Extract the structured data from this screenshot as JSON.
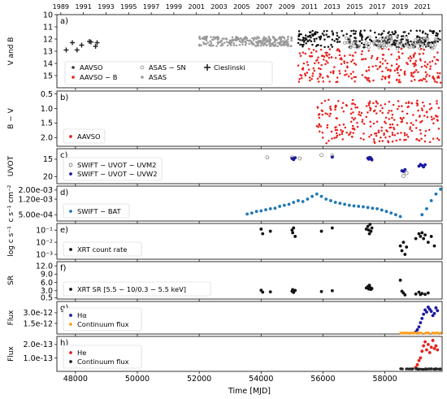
{
  "chart_data": {
    "type": "scatter",
    "x_axis": {
      "label": "Time [MJD]",
      "range": [
        47400,
        59850
      ],
      "ticks": [
        48000,
        50000,
        52000,
        54000,
        56000,
        58000
      ],
      "tick_labels": [
        "48000",
        "50000",
        "52000",
        "54000",
        "56000",
        "58000"
      ]
    },
    "top_axis": {
      "ticks": [
        1989,
        1991,
        1993,
        1995,
        1997,
        1999,
        2001,
        2003,
        2005,
        2007,
        2009,
        2011,
        2013,
        2015,
        2017,
        2019,
        2021
      ],
      "tick_labels": [
        "1989",
        "1991",
        "1993",
        "1995",
        "1997",
        "1999",
        "2001",
        "2003",
        "2005",
        "2007",
        "2009",
        "2011",
        "2013",
        "2015",
        "2017",
        "2019",
        "2021"
      ]
    },
    "panels": [
      {
        "letter": "a)",
        "ylabel": "V and B",
        "ylim": [
          10,
          16
        ],
        "inverted": true,
        "yticks": [
          10,
          11,
          12,
          13,
          14,
          15
        ],
        "ytick_labels": [
          "10",
          "11",
          "12",
          "13",
          "14",
          "15"
        ],
        "legend": [
          "AAVSO",
          "AAVSO − B",
          "ASAS − SN",
          "ASAS",
          "Cieslinski"
        ],
        "series": [
          {
            "name": "Cieslinski",
            "color": "#222222",
            "marker": "plus",
            "x": [
              47700,
              47900,
              48050,
              48200,
              48450,
              48500,
              48650,
              48700
            ],
            "y": [
              12.9,
              12.3,
              12.9,
              12.5,
              12.2,
              12.25,
              12.6,
              12.3
            ]
          },
          {
            "name": "ASAS",
            "color": "#9a9a9a",
            "marker": "band",
            "x": [
              52000,
              55000
            ],
            "y": [
              11.8,
              12.6
            ]
          },
          {
            "name": "AAVSO",
            "color": "#111111",
            "marker": "band",
            "x": [
              55200,
              59800
            ],
            "y": [
              11.3,
              12.7
            ]
          },
          {
            "name": "ASAS − SN",
            "color": "#777777",
            "marker": "open",
            "x": [
              56700,
              59700
            ],
            "y": [
              11.8,
              12.8
            ]
          },
          {
            "name": "AAVSO − B",
            "color": "#e8201c",
            "marker": "band",
            "x": [
              55200,
              59800
            ],
            "y": [
              12.8,
              15.6
            ]
          }
        ]
      },
      {
        "letter": "b)",
        "ylabel": "B − V",
        "ylim": [
          0.4,
          2.3
        ],
        "inverted": true,
        "yticks": [
          0.5,
          1.0,
          1.5,
          2.0
        ],
        "ytick_labels": [
          "0.5",
          "1.0",
          "1.5",
          "2.0"
        ],
        "legend": [
          "AAVSO"
        ],
        "series": [
          {
            "name": "AAVSO",
            "color": "#e8201c",
            "marker": "band",
            "x": [
              55800,
              59800
            ],
            "y": [
              0.7,
              2.2
            ]
          }
        ]
      },
      {
        "letter": "c)",
        "ylabel": "UVOT",
        "ylim": [
          12,
          22
        ],
        "inverted": true,
        "yticks": [
          15,
          20
        ],
        "ytick_labels": [
          "15",
          "20"
        ],
        "legend": [
          "SWIFT − UVOT − UVM2",
          "SWIFT − UVOT − UVW2"
        ],
        "series": [
          {
            "name": "SWIFT − UVOT − UVM2",
            "color": "#555555",
            "marker": "open",
            "x": [
              54200,
              55000,
              55050,
              55250,
              55950,
              56300,
              57500,
              57550,
              58600,
              58700
            ],
            "y": [
              14.5,
              14.5,
              14.8,
              14.8,
              13.8,
              14.0,
              14.6,
              14.8,
              19.8,
              19.0
            ]
          },
          {
            "name": "SWIFT − UVOT − UVW2",
            "color": "#1a1aa0",
            "marker": "dot",
            "x": [
              55000,
              55050,
              55100,
              56300,
              57450,
              57480,
              57520,
              57550,
              57580,
              58550,
              58600,
              58650,
              59100,
              59150,
              59200,
              59250,
              59300
            ],
            "y": [
              14.8,
              15.1,
              14.6,
              14.4,
              14.7,
              15.0,
              14.5,
              14.8,
              15.2,
              18.3,
              18.5,
              18.0,
              17.0,
              16.5,
              16.8,
              17.2,
              16.6
            ]
          }
        ]
      },
      {
        "letter": "d)",
        "ylabel": "c s⁻¹ cm⁻²",
        "ylim": [
          0.00035,
          0.0025
        ],
        "log": true,
        "yticks": [
          0.0005,
          0.0012,
          0.002
        ],
        "ytick_labels": [
          "5.00e-04",
          "1.20e-03",
          "2.00e-03"
        ],
        "legend": [
          "SWIFT − BAT"
        ],
        "series": [
          {
            "name": "SWIFT − BAT",
            "color": "#1f77b4",
            "marker": "dot",
            "x": [
              53550,
              53700,
              53850,
              54000,
              54150,
              54300,
              54450,
              54600,
              54750,
              54900,
              55050,
              55200,
              55350,
              55500,
              55650,
              55800,
              55950,
              56100,
              56250,
              56400,
              56550,
              56700,
              56850,
              57000,
              57150,
              57300,
              57450,
              57600,
              57750,
              57900,
              58050,
              58200,
              58350,
              58500,
              59200,
              59350,
              59500,
              59650,
              59800
            ],
            "y": [
              0.00052,
              0.00055,
              0.0006,
              0.00062,
              0.00066,
              0.0007,
              0.00072,
              0.0008,
              0.00085,
              0.0009,
              0.001,
              0.0011,
              0.00105,
              0.0012,
              0.0014,
              0.0016,
              0.0014,
              0.0012,
              0.0011,
              0.001,
              0.00095,
              0.0009,
              0.00085,
              0.00082,
              0.0008,
              0.00078,
              0.00075,
              0.00072,
              0.0007,
              0.00065,
              0.0006,
              0.00055,
              0.0005,
              0.00045,
              0.0005,
              0.0007,
              0.0011,
              0.0016,
              0.0021
            ]
          }
        ]
      },
      {
        "letter": "e)",
        "ylabel": "log c s⁻¹",
        "ylim": [
          0.0004,
          0.35
        ],
        "log": true,
        "yticks": [
          0.001,
          0.01,
          0.1
        ],
        "ytick_labels": [
          "10⁻³",
          "10⁻²",
          "10⁻¹"
        ],
        "legend": [
          "XRT count rate"
        ],
        "series": [
          {
            "name": "XRT count rate",
            "color": "#111111",
            "marker": "dot",
            "x": [
              54000,
              54050,
              54300,
              55000,
              55020,
              55050,
              55100,
              55950,
              56300,
              57400,
              57450,
              57480,
              57500,
              57520,
              57550,
              57580,
              58500,
              58550,
              58600,
              58650,
              58700,
              59000,
              59100,
              59150,
              59200,
              59250,
              59300,
              59400,
              59500,
              59600
            ],
            "y": [
              0.12,
              0.05,
              0.08,
              0.1,
              0.06,
              0.15,
              0.03,
              0.08,
              0.15,
              0.12,
              0.2,
              0.1,
              0.05,
              0.3,
              0.08,
              0.15,
              0.005,
              0.002,
              0.01,
              0.001,
              0.004,
              0.02,
              0.05,
              0.03,
              0.06,
              0.02,
              0.04,
              0.01,
              0.03,
              0.005
            ]
          }
        ]
      },
      {
        "letter": "f)",
        "ylabel": "SR",
        "ylim": [
          0,
          13.5
        ],
        "yticks": [
          0.5,
          3.0,
          6.0,
          9.0,
          12.0
        ],
        "ytick_labels": [
          "0.5",
          "3.0",
          "6.0",
          "9.0",
          "12.0"
        ],
        "legend": [
          "XRT SR [5.5 − 10/0.3 − 5.5 keV]"
        ],
        "series": [
          {
            "name": "XRT SR [5.5 − 10/0.3 − 5.5 keV]",
            "color": "#111111",
            "marker": "dot",
            "x": [
              54000,
              54050,
              54300,
              55000,
              55020,
              55050,
              55100,
              55950,
              56300,
              57400,
              57450,
              57480,
              57500,
              57520,
              57550,
              57580,
              58500,
              58550,
              58600,
              58650,
              59000,
              59100,
              59150,
              59200,
              59300,
              59400
            ],
            "y": [
              3.2,
              2.5,
              2.6,
              2.8,
              3.4,
              2.4,
              3.1,
              2.7,
              3.0,
              4.0,
              4.5,
              3.6,
              5.0,
              4.2,
              3.5,
              3.8,
              6.8,
              2.8,
              2.2,
              1.5,
              1.8,
              2.5,
              1.6,
              2.0,
              1.7,
              2.2
            ]
          }
        ]
      },
      {
        "letter": "g)",
        "ylabel": "Flux",
        "ylim": [
          0,
          4.6e-12
        ],
        "yticks": [
          1.5e-12,
          3e-12
        ],
        "ytick_labels": [
          "1.5e-12",
          "3.0e-12"
        ],
        "legend": [
          "Hα",
          "Continuum flux"
        ],
        "series": [
          {
            "name": "Hα",
            "color": "#1a1aa0",
            "marker": "dot",
            "x": [
              59000,
              59050,
              59100,
              59150,
              59200,
              59250,
              59300,
              59350,
              59400,
              59450,
              59500,
              59550,
              59600,
              59650,
              59700
            ],
            "y": [
              3e-13,
              6e-13,
              1e-12,
              1.6e-12,
              2.2e-12,
              2.8e-12,
              3.4e-12,
              3.1e-12,
              3.8e-12,
              3.5e-12,
              3.2e-12,
              2.6e-12,
              2.9e-12,
              3.7e-12,
              3.3e-12
            ]
          },
          {
            "name": "Continuum flux",
            "color": "#ff9f1c",
            "marker": "dot",
            "x": [
              58500,
              59800
            ],
            "y": [
              1.2e-13,
              1.5e-13
            ]
          }
        ]
      },
      {
        "letter": "h)",
        "ylabel": "Flux",
        "ylim": [
          0,
          2.6e-13
        ],
        "yticks": [
          1e-13,
          2e-13
        ],
        "ytick_labels": [
          "1.0e-13",
          "2.0e-13"
        ],
        "legend": [
          "He",
          "Continuum flux"
        ],
        "series": [
          {
            "name": "He",
            "color": "#e8201c",
            "marker": "dot",
            "x": [
              59000,
              59050,
              59100,
              59150,
              59200,
              59250,
              59300,
              59350,
              59400,
              59450,
              59500,
              59550,
              59600,
              59650,
              59700
            ],
            "y": [
              3e-14,
              5e-14,
              8e-14,
              1e-13,
              1.5e-13,
              1.9e-13,
              2.2e-13,
              1.6e-13,
              2e-13,
              1.4e-13,
              1.8e-13,
              2.3e-13,
              1.7e-13,
              1.9e-13,
              1.6e-13
            ]
          },
          {
            "name": "Continuum flux",
            "color": "#222222",
            "marker": "dot",
            "x": [
              58500,
              59800
            ],
            "y": [
              1.5e-14,
              2e-14
            ]
          }
        ]
      }
    ]
  }
}
